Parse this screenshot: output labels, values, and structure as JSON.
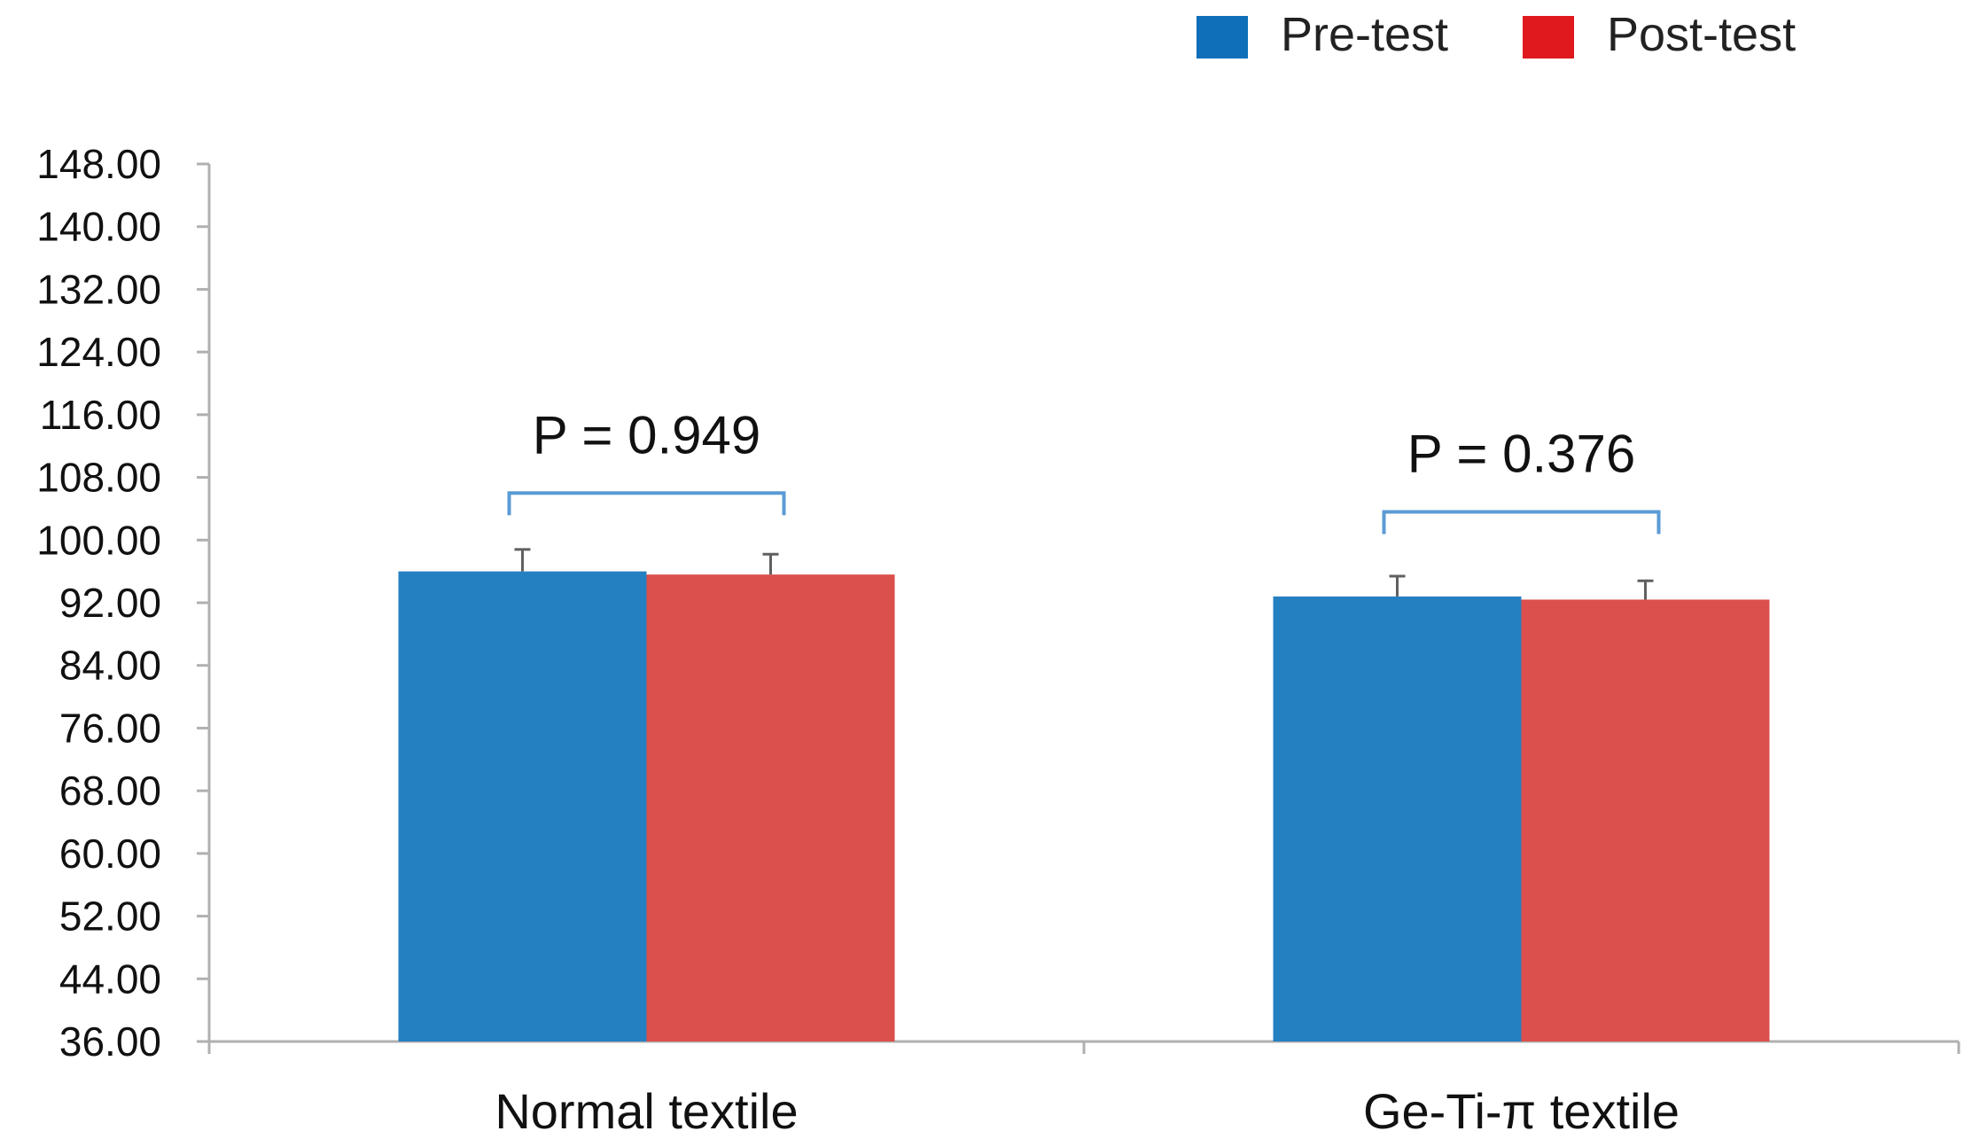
{
  "chart_data": {
    "type": "bar",
    "title": "",
    "xlabel": "",
    "ylabel": "",
    "categories": [
      "Normal textile",
      "Ge-Ti-π textile"
    ],
    "series": [
      {
        "name": "Pre-test",
        "color": "#2580c2",
        "values": [
          96.0,
          92.8
        ],
        "errors": [
          2.8,
          2.6
        ]
      },
      {
        "name": "Post-test",
        "color": "#db4f4c",
        "values": [
          95.6,
          92.4
        ],
        "errors": [
          2.6,
          2.4
        ]
      }
    ],
    "legend": {
      "position": "top-right",
      "swatch_colors": [
        "#0f6fb9",
        "#e0191f"
      ]
    },
    "ylim": [
      36,
      148
    ],
    "yticks": [
      36,
      44,
      52,
      60,
      68,
      76,
      84,
      92,
      100,
      108,
      116,
      124,
      132,
      140,
      148
    ],
    "ytick_labels": [
      "36.00",
      "44.00",
      "52.00",
      "60.00",
      "68.00",
      "76.00",
      "84.00",
      "92.00",
      "100.00",
      "108.00",
      "116.00",
      "124.00",
      "132.00",
      "140.00",
      "148.00"
    ],
    "annotations": [
      {
        "text": "P = 0.949",
        "category": 0,
        "bracket_level": 106.0
      },
      {
        "text": "P = 0.376",
        "category": 1,
        "bracket_level": 103.6
      }
    ],
    "grid": false,
    "colors": {
      "axis": "#b0b0b0",
      "error_bar": "#606060",
      "bracket": "#5a9bd5"
    }
  }
}
